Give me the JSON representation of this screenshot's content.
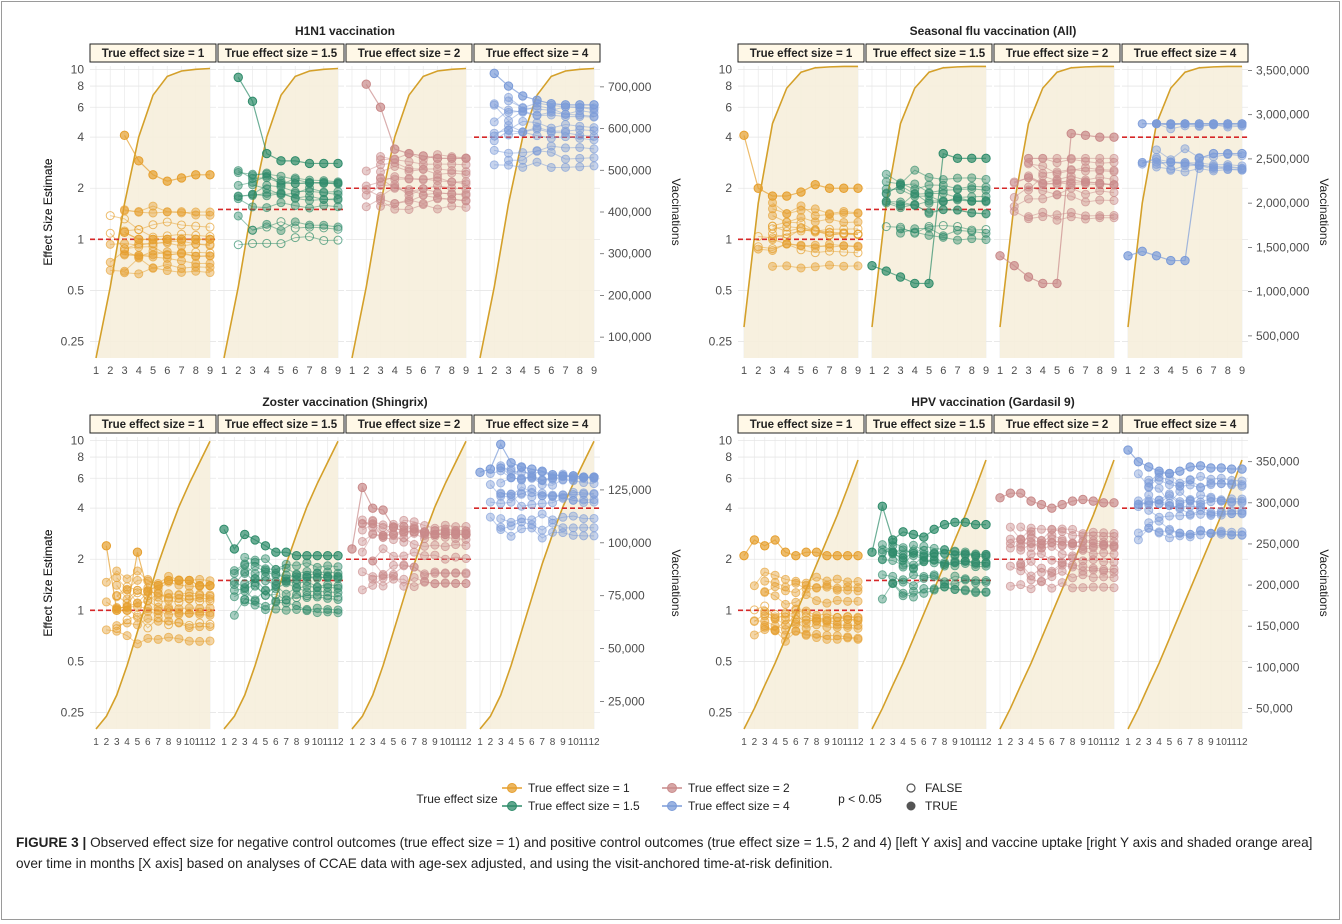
{
  "figure": {
    "caption_label": "FIGURE 3 |",
    "caption_text": "Observed effect size for negative control outcomes (true effect size = 1) and positive control outcomes (true effect size = 1.5, 2 and 4) [left Y axis] and vaccine uptake [right Y axis and shaded orange area] over time in months [X axis] based on analyses of CCAE data with age-sex adjusted, and using the visit-anchored time-at-risk definition."
  },
  "legend": {
    "effect_title": "True effect size",
    "p_title": "p < 0.05",
    "effect_items": [
      "True effect size = 1",
      "True effect size = 1.5",
      "True effect size = 2",
      "True effect size = 4"
    ],
    "p_items": [
      "FALSE",
      "TRUE"
    ]
  },
  "colors": {
    "es1": "#E69F2E",
    "es15": "#2E8B6A",
    "es2": "#C98A8A",
    "es4": "#7B9BD8",
    "uptake_line": "#D4A02A",
    "uptake_fill": "#F6EEDC",
    "reference_line": "#D62728"
  },
  "chart_data": [
    {
      "type": "line",
      "title": "H1N1 vaccination",
      "ylabel": "Effect Size Estimate",
      "y2label": "Vaccinations",
      "y_scale": "log",
      "y_ticks": [
        0.25,
        0.5,
        1,
        2,
        4,
        6,
        8,
        10
      ],
      "y2_ticks": [
        100000,
        200000,
        300000,
        400000,
        500000,
        600000,
        700000
      ],
      "y2_tick_labels": [
        "100,000",
        "200,000",
        "300,000",
        "400,000",
        "500,000",
        "600,000",
        "700,000"
      ],
      "y2lim": [
        50000,
        750000
      ],
      "x_ticks": [
        1,
        2,
        3,
        4,
        5,
        6,
        7,
        8,
        9
      ],
      "facets": [
        "True effect size = 1",
        "True effect size = 1.5",
        "True effect size = 2",
        "True effect size = 4"
      ],
      "true_effects": [
        1,
        1.5,
        2,
        4
      ],
      "uptake": {
        "x": [
          1,
          2,
          3,
          4,
          5,
          6,
          7,
          8,
          9
        ],
        "values": [
          50000,
          220000,
          420000,
          580000,
          680000,
          725000,
          738000,
          742000,
          744000
        ]
      },
      "estimate_range": [
        [
          0.6,
          2.4
        ],
        [
          0.85,
          3.0
        ],
        [
          1.3,
          3.2
        ],
        [
          2.2,
          7.5
        ]
      ],
      "example_series": [
        {
          "true_effect": 1,
          "x": [
            3,
            4,
            5,
            6,
            7,
            8,
            9
          ],
          "values": [
            4.1,
            2.9,
            2.4,
            2.2,
            2.3,
            2.4,
            2.4
          ]
        },
        {
          "true_effect": 1,
          "x": [
            3,
            4,
            5,
            6,
            7,
            8,
            9
          ],
          "values": [
            1.1,
            1.0,
            1.0,
            1.0,
            1.0,
            1.0,
            1.0
          ]
        },
        {
          "true_effect": 1.5,
          "x": [
            2,
            3,
            4,
            5,
            6,
            7,
            8,
            9
          ],
          "values": [
            9.0,
            6.5,
            3.2,
            2.9,
            2.9,
            2.8,
            2.8,
            2.8
          ]
        },
        {
          "true_effect": 2,
          "x": [
            2,
            3,
            4,
            5,
            6,
            7,
            8,
            9
          ],
          "values": [
            8.2,
            6.0,
            3.4,
            3.2,
            3.1,
            3.0,
            3.0,
            3.0
          ]
        },
        {
          "true_effect": 4,
          "x": [
            2,
            3,
            4,
            5,
            6,
            7,
            8,
            9
          ],
          "values": [
            9.5,
            8.0,
            7.0,
            6.6,
            6.3,
            6.2,
            6.2,
            6.2
          ]
        }
      ]
    },
    {
      "type": "line",
      "title": "Seasonal flu vaccination (All)",
      "ylabel": "Effect Size Estimate",
      "y2label": "Vaccinations",
      "y_scale": "log",
      "y_ticks": [
        0.25,
        0.5,
        1,
        2,
        4,
        6,
        8,
        10
      ],
      "y2_ticks": [
        500000,
        1000000,
        1500000,
        2000000,
        2500000,
        3000000,
        3500000
      ],
      "y2_tick_labels": [
        "500,000",
        "1,000,000",
        "1,500,000",
        "2,000,000",
        "2,500,000",
        "3,000,000",
        "3,500,000"
      ],
      "y2lim": [
        250000,
        3550000
      ],
      "x_ticks": [
        1,
        2,
        3,
        4,
        5,
        6,
        7,
        8,
        9
      ],
      "facets": [
        "True effect size = 1",
        "True effect size = 1.5",
        "True effect size = 2",
        "True effect size = 4"
      ],
      "true_effects": [
        1,
        1.5,
        2,
        4
      ],
      "uptake": {
        "x": [
          1,
          2,
          3,
          4,
          5,
          6,
          7,
          8,
          9
        ],
        "values": [
          600000,
          2000000,
          2900000,
          3300000,
          3480000,
          3530000,
          3540000,
          3545000,
          3545000
        ]
      },
      "estimate_range": [
        [
          0.6,
          1.9
        ],
        [
          0.9,
          2.6
        ],
        [
          1.2,
          3.0
        ],
        [
          1.9,
          4.8
        ]
      ],
      "example_series": [
        {
          "true_effect": 1,
          "x": [
            1,
            2,
            3,
            4,
            5,
            6,
            7,
            8,
            9
          ],
          "values": [
            4.1,
            2.0,
            1.8,
            1.8,
            1.9,
            2.1,
            2.0,
            2.0,
            2.0
          ]
        },
        {
          "true_effect": 1.5,
          "x": [
            1,
            2,
            3,
            4,
            5,
            6,
            7,
            8,
            9
          ],
          "values": [
            0.7,
            0.65,
            0.6,
            0.55,
            0.55,
            3.2,
            3.0,
            3.0,
            3.0
          ]
        },
        {
          "true_effect": 2,
          "x": [
            1,
            2,
            3,
            4,
            5,
            6,
            7,
            8,
            9
          ],
          "values": [
            0.8,
            0.7,
            0.6,
            0.55,
            0.55,
            4.2,
            4.1,
            4.0,
            4.0
          ]
        },
        {
          "true_effect": 4,
          "x": [
            1,
            2,
            3,
            4,
            5,
            6,
            7,
            8,
            9
          ],
          "values": [
            0.8,
            0.85,
            0.8,
            0.75,
            0.75,
            3.0,
            3.2,
            3.2,
            3.2
          ]
        }
      ]
    },
    {
      "type": "line",
      "title": "Zoster vaccination (Shingrix)",
      "ylabel": "Effect Size Estimate",
      "y2label": "Vaccinations",
      "y_scale": "log",
      "y_ticks": [
        0.25,
        0.5,
        1,
        2,
        4,
        6,
        8,
        10
      ],
      "y2_ticks": [
        25000,
        50000,
        75000,
        100000,
        125000
      ],
      "y2_tick_labels": [
        "25,000",
        "50,000",
        "75,000",
        "100,000",
        "125,000"
      ],
      "y2lim": [
        12000,
        150000
      ],
      "x_ticks": [
        1,
        2,
        3,
        4,
        5,
        6,
        7,
        8,
        9,
        10,
        11,
        12
      ],
      "x_tick_labels": [
        "1",
        "2",
        "3",
        "4",
        "5",
        "6",
        "7",
        "8",
        "9",
        "10",
        "11",
        "12"
      ],
      "facets": [
        "True effect size = 1",
        "True effect size = 1.5",
        "True effect size = 2",
        "True effect size = 4"
      ],
      "true_effects": [
        1,
        1.5,
        2,
        4
      ],
      "uptake": {
        "x": [
          1,
          2,
          3,
          4,
          5,
          6,
          7,
          8,
          9,
          10,
          11,
          12
        ],
        "values": [
          12000,
          18000,
          28000,
          42000,
          58000,
          74000,
          90000,
          104000,
          117000,
          128000,
          138000,
          148000
        ]
      },
      "estimate_range": [
        [
          0.3,
          2.4
        ],
        [
          0.75,
          3.0
        ],
        [
          1.2,
          5.3
        ],
        [
          2.2,
          9.5
        ]
      ],
      "example_series": [
        {
          "true_effect": 1,
          "x": [
            2,
            3,
            4,
            5,
            6,
            7,
            8,
            9,
            10,
            11,
            12
          ],
          "values": [
            2.4,
            1.0,
            1.0,
            2.2,
            1.3,
            1.4,
            1.5,
            1.5,
            1.5,
            1.4,
            1.4
          ]
        },
        {
          "true_effect": 1.5,
          "x": [
            1,
            2,
            3,
            4,
            5,
            6,
            7,
            8,
            9,
            10,
            11,
            12
          ],
          "values": [
            3.0,
            2.3,
            2.8,
            2.6,
            2.4,
            2.2,
            2.2,
            2.1,
            2.1,
            2.1,
            2.1,
            2.1
          ]
        },
        {
          "true_effect": 2,
          "x": [
            1,
            2,
            3,
            4,
            5,
            6,
            7,
            8,
            9,
            10,
            11,
            12
          ],
          "values": [
            2.3,
            5.3,
            4.0,
            3.9,
            3.1,
            2.9,
            2.9,
            2.9,
            2.8,
            2.8,
            2.8,
            2.8
          ]
        },
        {
          "true_effect": 4,
          "x": [
            1,
            2,
            3,
            4,
            5,
            6,
            7,
            8,
            9,
            10,
            11,
            12
          ],
          "values": [
            6.5,
            6.8,
            9.5,
            7.4,
            7.0,
            6.8,
            6.6,
            6.3,
            6.2,
            6.2,
            6.1,
            6.1
          ]
        }
      ]
    },
    {
      "type": "line",
      "title": "HPV vaccination (Gardasil 9)",
      "ylabel": "Effect Size Estimate",
      "y2label": "Vaccinations",
      "y_scale": "log",
      "y_ticks": [
        0.25,
        0.5,
        1,
        2,
        4,
        6,
        8,
        10
      ],
      "y2_ticks": [
        50000,
        100000,
        150000,
        200000,
        250000,
        300000,
        350000
      ],
      "y2_tick_labels": [
        "50,000",
        "100,000",
        "150,000",
        "200,000",
        "250,000",
        "300,000",
        "350,000"
      ],
      "y2lim": [
        25000,
        380000
      ],
      "x_ticks": [
        1,
        2,
        3,
        4,
        5,
        6,
        7,
        8,
        9,
        10,
        11,
        12
      ],
      "x_tick_labels": [
        "1",
        "2",
        "3",
        "4",
        "5",
        "6",
        "7",
        "8",
        "9",
        "10",
        "11",
        "12"
      ],
      "facets": [
        "True effect size = 1",
        "True effect size = 1.5",
        "True effect size = 2",
        "True effect size = 4"
      ],
      "true_effects": [
        1,
        1.5,
        2,
        4
      ],
      "uptake": {
        "x": [
          1,
          2,
          3,
          4,
          5,
          6,
          7,
          8,
          9,
          10,
          11,
          12
        ],
        "values": [
          25000,
          50000,
          78000,
          105000,
          135000,
          165000,
          195000,
          225000,
          255000,
          285000,
          318000,
          352000
        ]
      },
      "estimate_range": [
        [
          0.4,
          2.6
        ],
        [
          0.75,
          4.0
        ],
        [
          0.95,
          4.9
        ],
        [
          1.7,
          9.0
        ]
      ],
      "example_series": [
        {
          "true_effect": 1,
          "x": [
            1,
            2,
            3,
            4,
            5,
            6,
            7,
            8,
            9,
            10,
            11,
            12
          ],
          "values": [
            2.1,
            2.6,
            2.4,
            2.6,
            2.2,
            2.1,
            2.2,
            2.2,
            2.1,
            2.1,
            2.1,
            2.1
          ]
        },
        {
          "true_effect": 1.5,
          "x": [
            1,
            2,
            3,
            4,
            5,
            6,
            7,
            8,
            9,
            10,
            11,
            12
          ],
          "values": [
            2.2,
            4.1,
            2.6,
            2.9,
            2.8,
            2.7,
            3.0,
            3.2,
            3.3,
            3.3,
            3.2,
            3.2
          ]
        },
        {
          "true_effect": 2,
          "x": [
            1,
            2,
            3,
            4,
            5,
            6,
            7,
            8,
            9,
            10,
            11,
            12
          ],
          "values": [
            4.6,
            4.9,
            4.9,
            4.4,
            4.2,
            4.0,
            4.2,
            4.4,
            4.5,
            4.4,
            4.3,
            4.3
          ]
        },
        {
          "true_effect": 4,
          "x": [
            1,
            2,
            3,
            4,
            5,
            6,
            7,
            8,
            9,
            10,
            11,
            12
          ],
          "values": [
            8.8,
            7.5,
            7.0,
            6.6,
            6.4,
            6.6,
            7.0,
            7.1,
            6.9,
            6.9,
            6.8,
            6.8
          ]
        }
      ]
    }
  ]
}
